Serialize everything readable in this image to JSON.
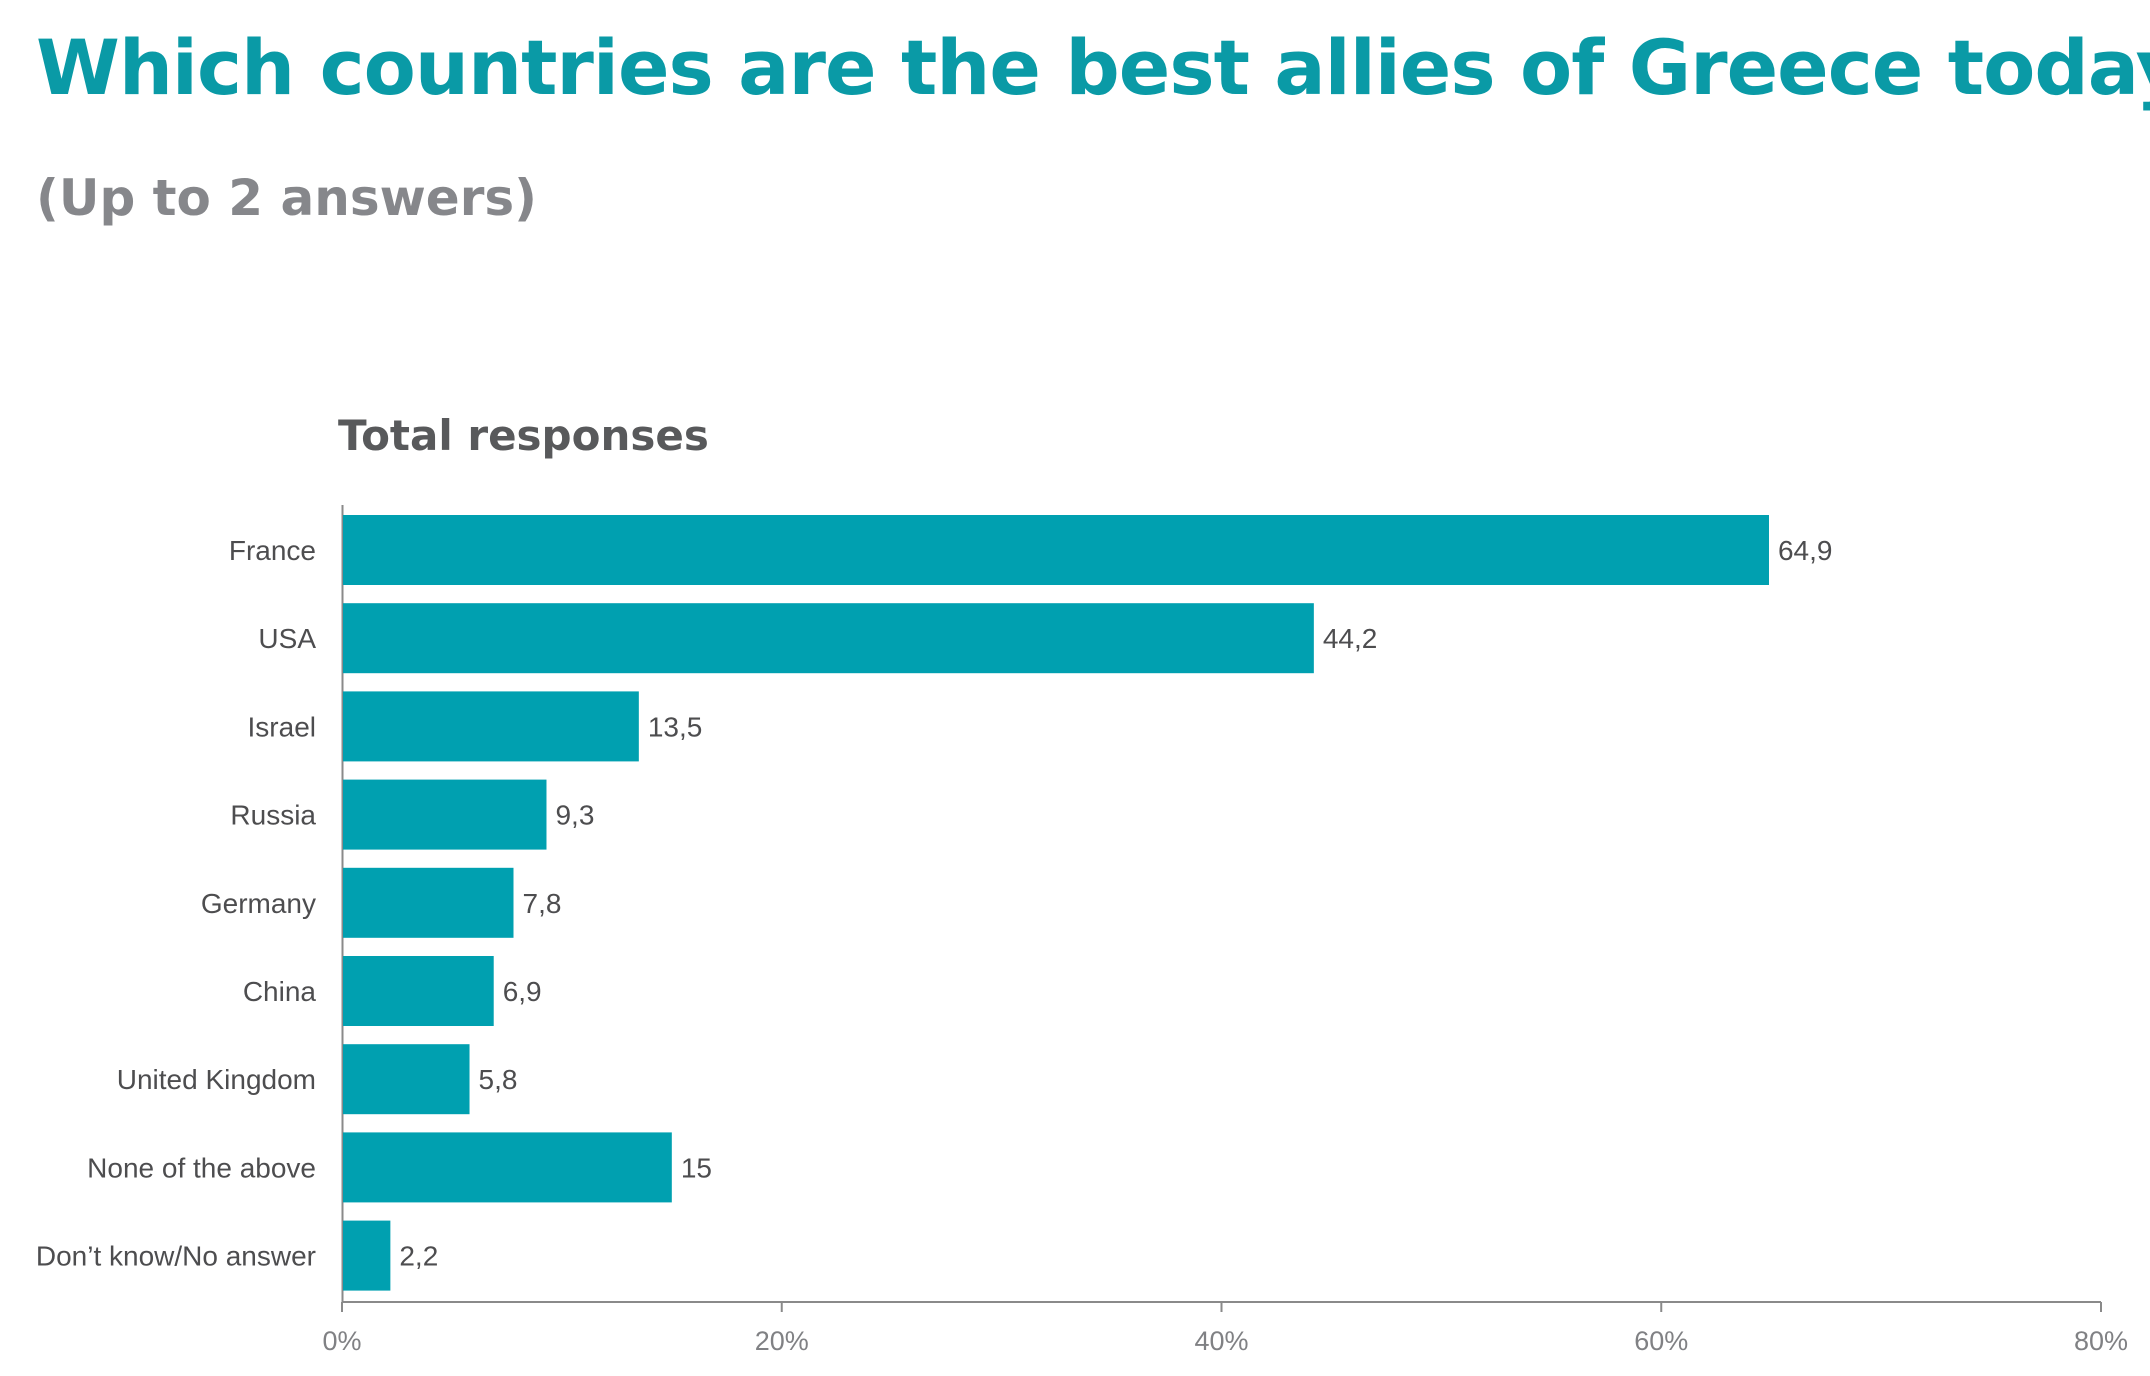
{
  "title": "Which countries are the best allies of Greece today?",
  "subtitle": "(Up to 2 answers)",
  "panel_title": "Total responses",
  "colors": {
    "bar": "#00a0b0",
    "title": "#0a9aa6",
    "subtitle": "#86878b",
    "axis": "#8a8a8a"
  },
  "chart_data": {
    "type": "bar",
    "orientation": "horizontal",
    "categories": [
      "France",
      "USA",
      "Israel",
      "Russia",
      "Germany",
      "China",
      "United Kingdom",
      "None of the above",
      "Don’t know/No answer"
    ],
    "values": [
      64.9,
      44.2,
      13.5,
      9.3,
      7.8,
      6.9,
      5.8,
      15,
      2.2
    ],
    "value_labels": [
      "64,9",
      "44,2",
      "13,5",
      "9,3",
      "7,8",
      "6,9",
      "5,8",
      "15",
      "2,2"
    ],
    "xlim": [
      0,
      80
    ],
    "ticks": [
      0,
      20,
      40,
      60,
      80
    ],
    "tick_labels": [
      "0%",
      "20%",
      "40%",
      "60%",
      "80%"
    ],
    "grid": false
  }
}
